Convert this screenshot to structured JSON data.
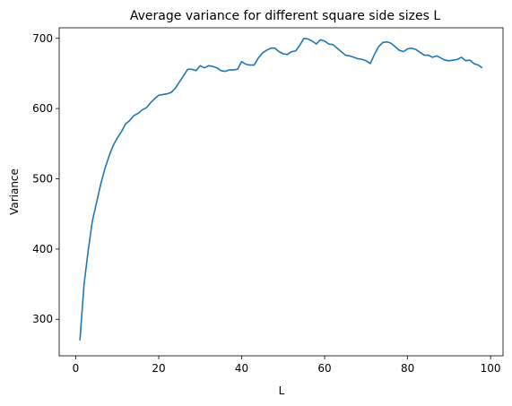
{
  "chart_data": {
    "type": "line",
    "title": "Average variance for different square side sizes L",
    "xlabel": "L",
    "ylabel": "Variance",
    "xlim": [
      -4,
      103
    ],
    "ylim": [
      248,
      715
    ],
    "xticks": [
      0,
      20,
      40,
      60,
      80,
      100
    ],
    "yticks": [
      300,
      400,
      500,
      600,
      700
    ],
    "grid": false,
    "line_color": "#1f77b4",
    "x": [
      1,
      2,
      3,
      4,
      5,
      6,
      7,
      8,
      9,
      10,
      11,
      12,
      13,
      14,
      15,
      16,
      17,
      18,
      19,
      20,
      21,
      22,
      23,
      24,
      25,
      26,
      27,
      28,
      29,
      30,
      31,
      32,
      33,
      34,
      35,
      36,
      37,
      38,
      39,
      40,
      41,
      42,
      43,
      44,
      45,
      46,
      47,
      48,
      49,
      50,
      51,
      52,
      53,
      54,
      55,
      56,
      57,
      58,
      59,
      60,
      61,
      62,
      63,
      64,
      65,
      66,
      67,
      68,
      69,
      70,
      71,
      72,
      73,
      74,
      75,
      76,
      77,
      78,
      79,
      80,
      81,
      82,
      83,
      84,
      85,
      86,
      87,
      88,
      89,
      90,
      91,
      92,
      93,
      94,
      95,
      96,
      97,
      98
    ],
    "series": [
      {
        "values": [
          270,
          350,
          398,
          440,
          466,
          492,
          514,
          532,
          547,
          558,
          567,
          578,
          583,
          590,
          593,
          598,
          601,
          608,
          614,
          619,
          620,
          621,
          623,
          629,
          638,
          647,
          656,
          656,
          654,
          661,
          658,
          661,
          660,
          658,
          654,
          653,
          655,
          655,
          656,
          667,
          663,
          662,
          662,
          672,
          679,
          683,
          686,
          686,
          681,
          678,
          677,
          681,
          682,
          690,
          700,
          699,
          696,
          692,
          698,
          696,
          692,
          691,
          686,
          681,
          676,
          675,
          673,
          671,
          670,
          668,
          664,
          677,
          688,
          694,
          695,
          693,
          688,
          683,
          681,
          685,
          686,
          684,
          680,
          676,
          676,
          673,
          675,
          672,
          669,
          668,
          669,
          670,
          673,
          668,
          669,
          664,
          662,
          658
        ]
      }
    ]
  }
}
